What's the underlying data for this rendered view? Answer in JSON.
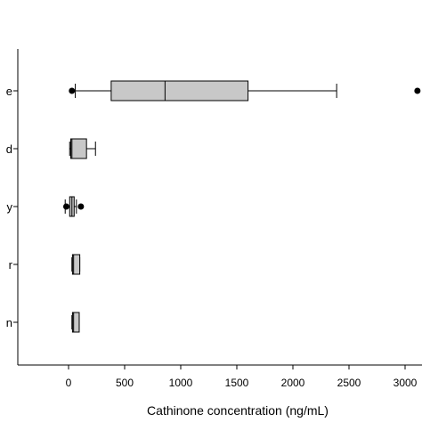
{
  "chart_data": {
    "type": "box",
    "orientation": "horizontal",
    "xlabel": "Cathinone concentration (ng/mL)",
    "xlim": [
      -450,
      3150
    ],
    "xticks": [
      0,
      500,
      1000,
      1500,
      2000,
      2500,
      3000
    ],
    "xtick_labels": [
      "0",
      "500",
      "1000",
      "1500",
      "2000",
      "2500",
      "3000"
    ],
    "categories": [
      "e",
      "d",
      "y",
      "r",
      "n"
    ],
    "boxes": [
      {
        "category": "e",
        "whisker_low": 60,
        "q1": 380,
        "median": 860,
        "q3": 1600,
        "whisker_high": 2390,
        "outliers": [
          30,
          3110
        ]
      },
      {
        "category": "d",
        "whisker_low": 10,
        "q1": 20,
        "median": 30,
        "q3": 160,
        "whisker_high": 240,
        "outliers": []
      },
      {
        "category": "y",
        "whisker_low": -30,
        "q1": 10,
        "median": 30,
        "q3": 50,
        "whisker_high": 70,
        "outliers": [
          -20,
          110
        ]
      },
      {
        "category": "r",
        "whisker_low": 30,
        "q1": 35,
        "median": 45,
        "q3": 100,
        "whisker_high": 100,
        "outliers": []
      },
      {
        "category": "n",
        "whisker_low": 30,
        "q1": 35,
        "median": 45,
        "q3": 95,
        "whisker_high": 95,
        "outliers": []
      }
    ],
    "box_fill": "#c8c8c8",
    "line_color": "#000000",
    "grid": false,
    "legend": "none"
  }
}
